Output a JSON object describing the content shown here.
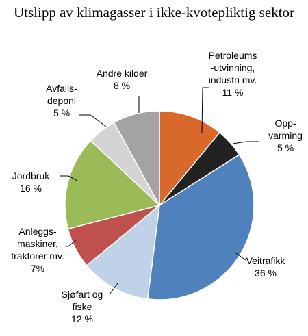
{
  "chart_data": {
    "type": "pie",
    "title": "Utslipp av klimagasser i ikke-kvotepliktig sektor",
    "slices": [
      {
        "label_lines": [
          "Petroleums",
          "-utvinning,",
          "industri mv."
        ],
        "percent_label": "11 %",
        "value": 11,
        "color": "#d9692a"
      },
      {
        "label_lines": [
          "Opp-",
          "varming"
        ],
        "percent_label": "5 %",
        "value": 5,
        "color": "#222222"
      },
      {
        "label_lines": [
          "Veitrafikk"
        ],
        "percent_label": "36 %",
        "value": 36,
        "color": "#4f81bd"
      },
      {
        "label_lines": [
          "Sjøfart og",
          "fiske"
        ],
        "percent_label": "12 %",
        "value": 12,
        "color": "#c0d2e8"
      },
      {
        "label_lines": [
          "Anleggs-",
          "maskiner,",
          "traktorer mv."
        ],
        "percent_label": "7%",
        "value": 7,
        "color": "#c0504d"
      },
      {
        "label_lines": [
          "Jordbruk"
        ],
        "percent_label": "16 %",
        "value": 16,
        "color": "#9bbb59"
      },
      {
        "label_lines": [
          "Avfalls-",
          "deponi"
        ],
        "percent_label": "5 %",
        "value": 5,
        "color": "#d4d4d4"
      },
      {
        "label_lines": [
          "Andre kilder"
        ],
        "percent_label": "8 %",
        "value": 8,
        "color": "#a3a3a3"
      }
    ]
  }
}
